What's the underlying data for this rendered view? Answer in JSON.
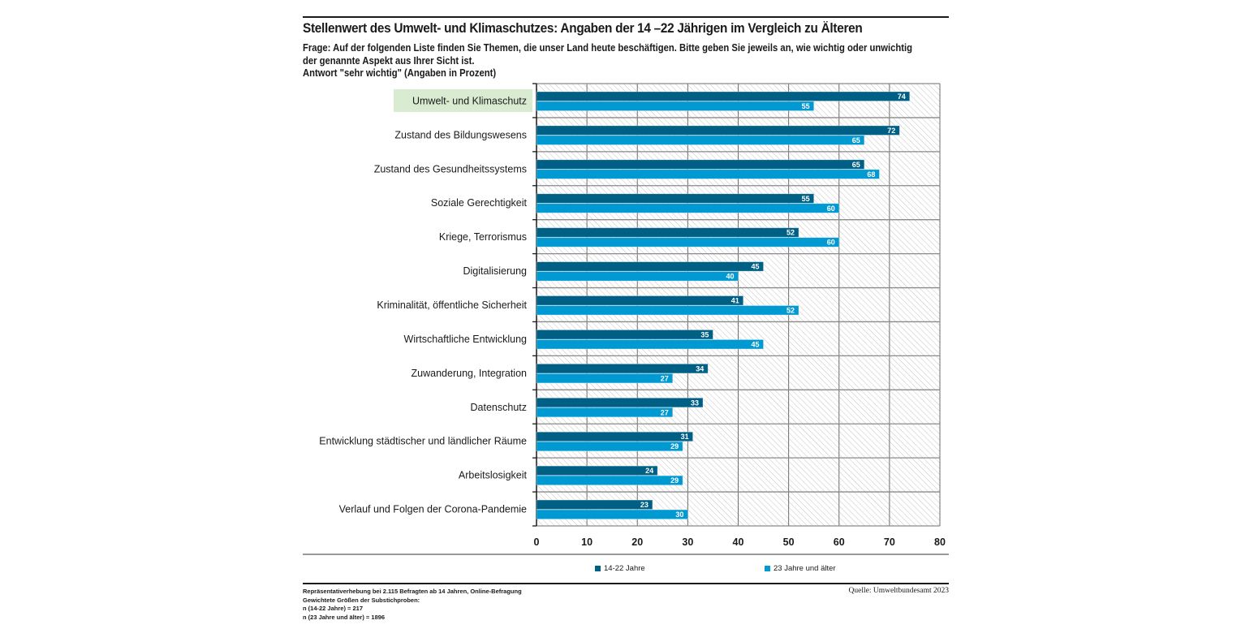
{
  "header": {
    "title": "Stellenwert des Umwelt- und Klimaschutzes: Angaben der 14 –22 Jährigen im Vergleich zu Älteren",
    "question": "Frage: Auf der folgenden Liste finden Sie Themen, die unser Land heute beschäftigen. Bitte geben Sie jeweils an, wie wichtig oder unwichtig der genannte Aspekt aus Ihrer Sicht ist.",
    "answer_note": "Antwort \"sehr wichtig\" (Angaben in Prozent)"
  },
  "footer": {
    "notes": [
      "Repräsentativerhebung bei 2.115 Befragten ab 14 Jahren, Online-Befragung",
      "Gewichtete Größen der Substichproben:",
      "n (14-22 Jahre) = 217",
      "n (23 Jahre und älter) = 1896"
    ],
    "source": "Quelle: Umweltbundesamt 2023"
  },
  "colors": {
    "series_young": "#005f85",
    "series_old": "#0099d2",
    "highlight": "#d9ecd2",
    "grid": "#6e6e6e"
  },
  "chart_data": {
    "type": "bar",
    "orientation": "horizontal",
    "title": "Stellenwert des Umwelt- und Klimaschutzes: Angaben der 14 –22 Jährigen im Vergleich zu Älteren",
    "xlabel": "",
    "ylabel": "",
    "xlim": [
      0,
      80
    ],
    "xticks": [
      0,
      10,
      20,
      30,
      40,
      50,
      60,
      70,
      80
    ],
    "grid": true,
    "legend_position": "bottom",
    "highlighted_category": "Umwelt- und Klimaschutz",
    "categories": [
      "Umwelt- und Klimaschutz",
      "Zustand des Bildungswesens",
      "Zustand des Gesundheitssystems",
      "Soziale Gerechtigkeit",
      "Kriege, Terrorismus",
      "Digitalisierung",
      "Kriminalität, öffentliche Sicherheit",
      "Wirtschaftliche Entwicklung",
      "Zuwanderung, Integration",
      "Datenschutz",
      "Entwicklung städtischer und ländlicher Räume",
      "Arbeitslosigkeit",
      "Verlauf und Folgen der Corona-Pandemie"
    ],
    "series": [
      {
        "name": "14-22 Jahre",
        "values": [
          74,
          72,
          65,
          55,
          52,
          45,
          41,
          35,
          34,
          33,
          31,
          24,
          23
        ]
      },
      {
        "name": "23 Jahre und älter",
        "values": [
          55,
          65,
          68,
          60,
          60,
          40,
          52,
          45,
          27,
          27,
          29,
          29,
          30
        ]
      }
    ]
  }
}
